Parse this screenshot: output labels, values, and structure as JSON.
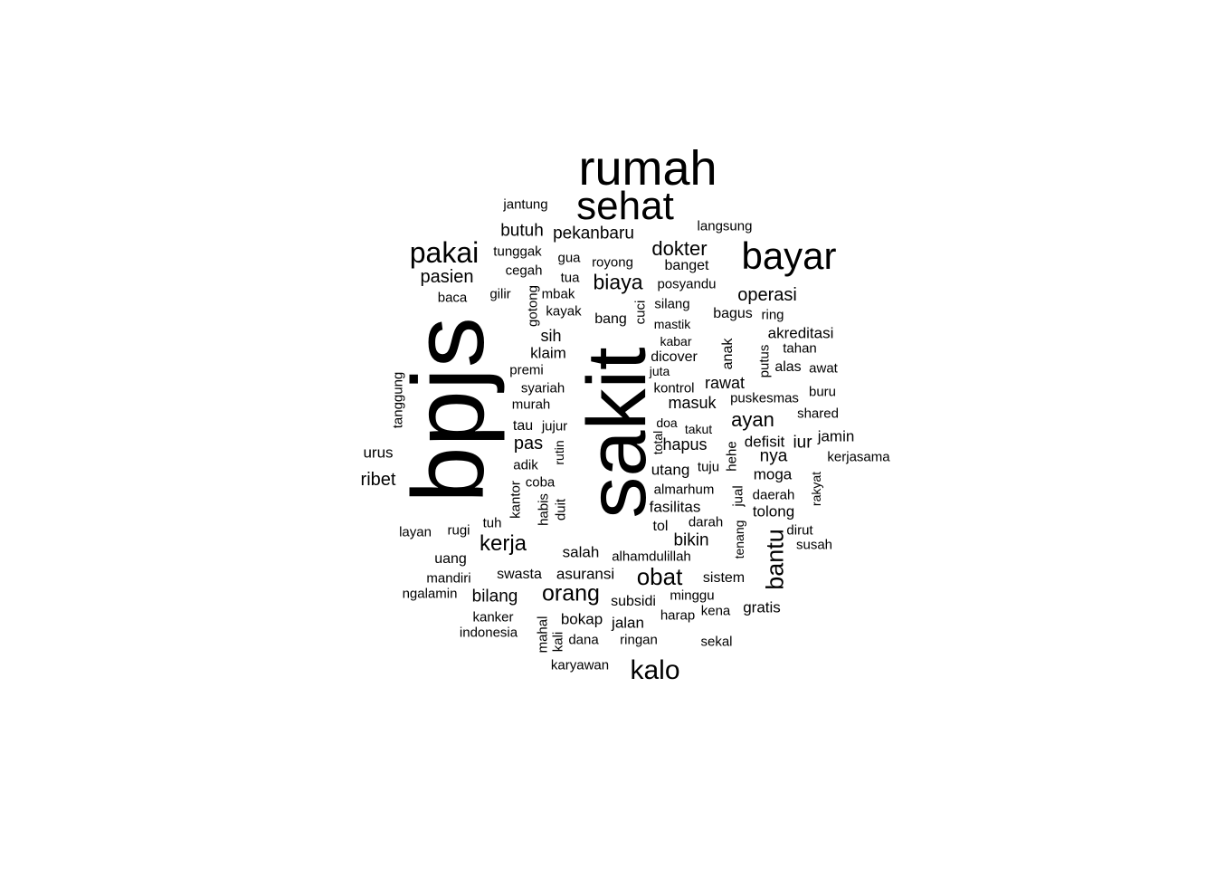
{
  "wordcloud": {
    "text_color": "#000000",
    "background": "#ffffff",
    "words": [
      {
        "text": "sakit",
        "vertical": true
      },
      {
        "text": "bpjs",
        "vertical": true
      },
      {
        "text": "rumah",
        "vertical": false
      },
      {
        "text": "sehat",
        "vertical": false
      },
      {
        "text": "bayar",
        "vertical": false
      },
      {
        "text": "pakai",
        "vertical": false
      },
      {
        "text": "kalo",
        "vertical": false
      },
      {
        "text": "bantu",
        "vertical": true
      },
      {
        "text": "obat",
        "vertical": false
      },
      {
        "text": "orang",
        "vertical": false
      },
      {
        "text": "kerja",
        "vertical": false
      },
      {
        "text": "biaya",
        "vertical": false
      },
      {
        "text": "dokter",
        "vertical": false
      },
      {
        "text": "operasi",
        "vertical": false
      },
      {
        "text": "ayan",
        "vertical": false
      },
      {
        "text": "ribet",
        "vertical": false
      },
      {
        "text": "pasien",
        "vertical": false
      },
      {
        "text": "pekanbaru",
        "vertical": false
      },
      {
        "text": "butuh",
        "vertical": false
      },
      {
        "text": "masuk",
        "vertical": false
      },
      {
        "text": "rawat",
        "vertical": false
      },
      {
        "text": "pas",
        "vertical": false
      },
      {
        "text": "bilang",
        "vertical": false
      },
      {
        "text": "bikin",
        "vertical": false
      },
      {
        "text": "nya",
        "vertical": false
      },
      {
        "text": "iur",
        "vertical": false
      },
      {
        "text": "hapus",
        "vertical": false
      },
      {
        "text": "defisit",
        "vertical": false
      },
      {
        "text": "jamin",
        "vertical": false
      },
      {
        "text": "moga",
        "vertical": false
      },
      {
        "text": "utang",
        "vertical": false
      },
      {
        "text": "fasilitas",
        "vertical": false
      },
      {
        "text": "tolong",
        "vertical": false
      },
      {
        "text": "gratis",
        "vertical": false
      },
      {
        "text": "jalan",
        "vertical": false
      },
      {
        "text": "bokap",
        "vertical": false
      },
      {
        "text": "subsidi",
        "vertical": false
      },
      {
        "text": "asuransi",
        "vertical": false
      },
      {
        "text": "swasta",
        "vertical": false
      },
      {
        "text": "salah",
        "vertical": false
      },
      {
        "text": "sistem",
        "vertical": false
      },
      {
        "text": "alas",
        "vertical": false
      },
      {
        "text": "akreditasi",
        "vertical": false
      },
      {
        "text": "bagus",
        "vertical": false
      },
      {
        "text": "dicover",
        "vertical": false
      },
      {
        "text": "klaim",
        "vertical": false
      },
      {
        "text": "sih",
        "vertical": false
      },
      {
        "text": "bang",
        "vertical": false
      },
      {
        "text": "posyandu",
        "vertical": false
      },
      {
        "text": "banget",
        "vertical": false
      },
      {
        "text": "langsung",
        "vertical": false
      },
      {
        "text": "jantung",
        "vertical": false
      },
      {
        "text": "tunggak",
        "vertical": false
      },
      {
        "text": "gua",
        "vertical": false
      },
      {
        "text": "royong",
        "vertical": false
      },
      {
        "text": "cegah",
        "vertical": false
      },
      {
        "text": "tua",
        "vertical": false
      },
      {
        "text": "gilir",
        "vertical": false
      },
      {
        "text": "mbak",
        "vertical": false
      },
      {
        "text": "baca",
        "vertical": false
      },
      {
        "text": "kayak",
        "vertical": false
      },
      {
        "text": "gotong",
        "vertical": true
      },
      {
        "text": "cuci",
        "vertical": true
      },
      {
        "text": "silang",
        "vertical": false
      },
      {
        "text": "mastik",
        "vertical": false
      },
      {
        "text": "ring",
        "vertical": false
      },
      {
        "text": "kabar",
        "vertical": false
      },
      {
        "text": "anak",
        "vertical": true
      },
      {
        "text": "putus",
        "vertical": true
      },
      {
        "text": "tahan",
        "vertical": false
      },
      {
        "text": "awat",
        "vertical": false
      },
      {
        "text": "premi",
        "vertical": false
      },
      {
        "text": "juta",
        "vertical": false
      },
      {
        "text": "tanggung",
        "vertical": true
      },
      {
        "text": "syariah",
        "vertical": false
      },
      {
        "text": "kontrol",
        "vertical": false
      },
      {
        "text": "puskesmas",
        "vertical": false
      },
      {
        "text": "buru",
        "vertical": false
      },
      {
        "text": "murah",
        "vertical": false
      },
      {
        "text": "shared",
        "vertical": false
      },
      {
        "text": "doa",
        "vertical": false
      },
      {
        "text": "tau",
        "vertical": false
      },
      {
        "text": "jujur",
        "vertical": false
      },
      {
        "text": "takut",
        "vertical": false
      },
      {
        "text": "total",
        "vertical": true
      },
      {
        "text": "urus",
        "vertical": false
      },
      {
        "text": "rutin",
        "vertical": true
      },
      {
        "text": "hehe",
        "vertical": true
      },
      {
        "text": "kerjasama",
        "vertical": false
      },
      {
        "text": "adik",
        "vertical": false
      },
      {
        "text": "tuju",
        "vertical": false
      },
      {
        "text": "rakyat",
        "vertical": true
      },
      {
        "text": "coba",
        "vertical": false
      },
      {
        "text": "kantor",
        "vertical": true
      },
      {
        "text": "almarhum",
        "vertical": false
      },
      {
        "text": "jual",
        "vertical": true
      },
      {
        "text": "daerah",
        "vertical": false
      },
      {
        "text": "habis",
        "vertical": true
      },
      {
        "text": "duit",
        "vertical": true
      },
      {
        "text": "darah",
        "vertical": false
      },
      {
        "text": "tuh",
        "vertical": false
      },
      {
        "text": "layan",
        "vertical": false
      },
      {
        "text": "rugi",
        "vertical": false
      },
      {
        "text": "tol",
        "vertical": false
      },
      {
        "text": "dirut",
        "vertical": false
      },
      {
        "text": "tenang",
        "vertical": true
      },
      {
        "text": "susah",
        "vertical": false
      },
      {
        "text": "uang",
        "vertical": false
      },
      {
        "text": "alhamdulillah",
        "vertical": false
      },
      {
        "text": "mandiri",
        "vertical": false
      },
      {
        "text": "ngalamin",
        "vertical": false
      },
      {
        "text": "minggu",
        "vertical": false
      },
      {
        "text": "harap",
        "vertical": false
      },
      {
        "text": "kena",
        "vertical": false
      },
      {
        "text": "kanker",
        "vertical": false
      },
      {
        "text": "indonesia",
        "vertical": false
      },
      {
        "text": "mahal",
        "vertical": true
      },
      {
        "text": "kali",
        "vertical": true
      },
      {
        "text": "dana",
        "vertical": false
      },
      {
        "text": "ringan",
        "vertical": false
      },
      {
        "text": "sekal",
        "vertical": false
      },
      {
        "text": "karyawan",
        "vertical": false
      }
    ]
  }
}
